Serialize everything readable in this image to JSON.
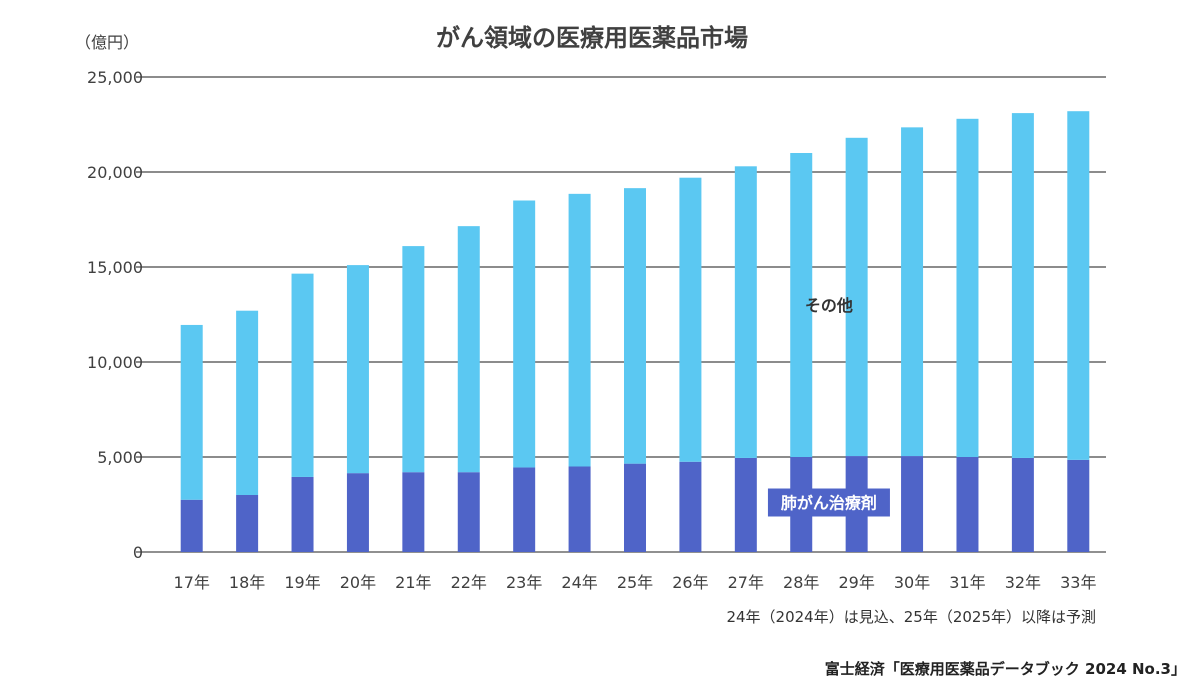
{
  "chart_data": {
    "type": "bar",
    "stacked": true,
    "title": "がん領域の医療用医薬品市場",
    "unit_label": "（億円）",
    "ylim": [
      0,
      25000
    ],
    "yticks": [
      0,
      5000,
      10000,
      15000,
      20000,
      25000
    ],
    "ytick_labels": [
      "0",
      "5,000",
      "10,000",
      "15,000",
      "20,000",
      "25,000"
    ],
    "grid": true,
    "categories": [
      "17年",
      "18年",
      "19年",
      "20年",
      "21年",
      "22年",
      "23年",
      "24年",
      "25年",
      "26年",
      "27年",
      "28年",
      "29年",
      "30年",
      "31年",
      "32年",
      "33年"
    ],
    "series": [
      {
        "name": "肺がん治療剤",
        "color": "#4f64c8",
        "values": [
          2750,
          3000,
          3950,
          4150,
          4200,
          4200,
          4450,
          4500,
          4650,
          4750,
          4950,
          5000,
          5050,
          5050,
          5000,
          4950,
          4850
        ]
      },
      {
        "name": "その他",
        "color": "#5bc8f2",
        "values": [
          9200,
          9700,
          10700,
          10950,
          11900,
          12950,
          14050,
          14350,
          14500,
          14950,
          15350,
          16000,
          16750,
          17300,
          17800,
          18150,
          18350
        ]
      }
    ],
    "note": "24年（2024年）は見込、25年（2025年）以降は予測",
    "source": "富士経済「医療用医薬品データブック 2024 No.3」"
  }
}
